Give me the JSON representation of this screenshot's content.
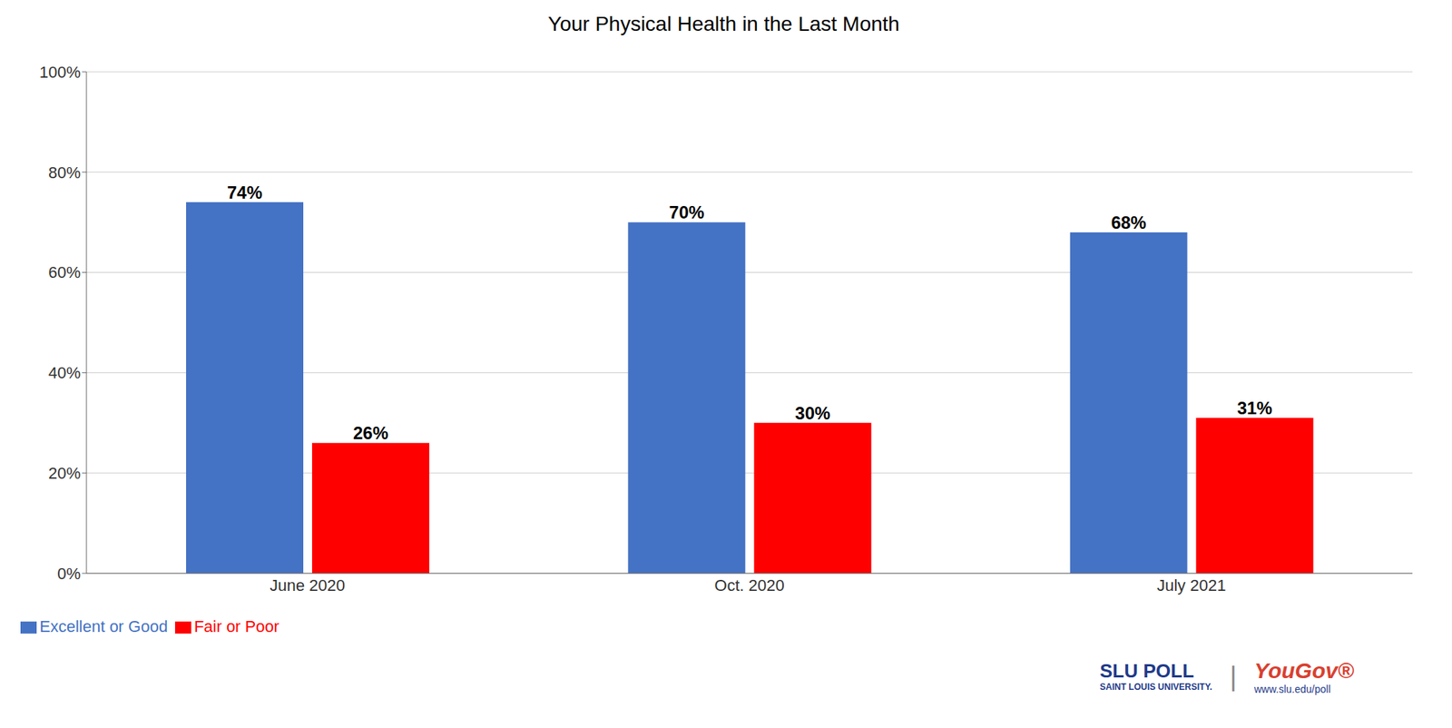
{
  "chart_data": {
    "type": "bar",
    "title": "Your Physical Health in the Last Month",
    "categories": [
      "June 2020",
      "Oct. 2020",
      "July 2021"
    ],
    "series": [
      {
        "name": "Excellent or Good",
        "color": "#4472C4",
        "values": [
          74,
          70,
          68
        ],
        "value_labels": [
          "74%",
          "70%",
          "68%"
        ]
      },
      {
        "name": "Fair or Poor",
        "color": "#FF0000",
        "values": [
          26,
          30,
          31
        ],
        "value_labels": [
          "26%",
          "30%",
          "31%"
        ]
      }
    ],
    "ylim": [
      0,
      100
    ],
    "yticks": [
      {
        "value": 0,
        "label": "0%"
      },
      {
        "value": 20,
        "label": "20%"
      },
      {
        "value": 40,
        "label": "40%"
      },
      {
        "value": 60,
        "label": "60%"
      },
      {
        "value": 80,
        "label": "80%"
      },
      {
        "value": 100,
        "label": "100%"
      }
    ],
    "grid": true,
    "legend": "lower left",
    "data_labels": true,
    "annotations": [
      {
        "text": "SLU POLL",
        "color": "#1F3A8A"
      },
      {
        "text": "SAINT LOUIS UNIVERSITY.",
        "color": "#1F3A8A"
      },
      {
        "text": "|",
        "color": "#888888"
      },
      {
        "text": "YouGov®",
        "color": "#D94030"
      },
      {
        "text": "www.slu.edu/poll",
        "color": "#1F3A8A"
      }
    ]
  }
}
